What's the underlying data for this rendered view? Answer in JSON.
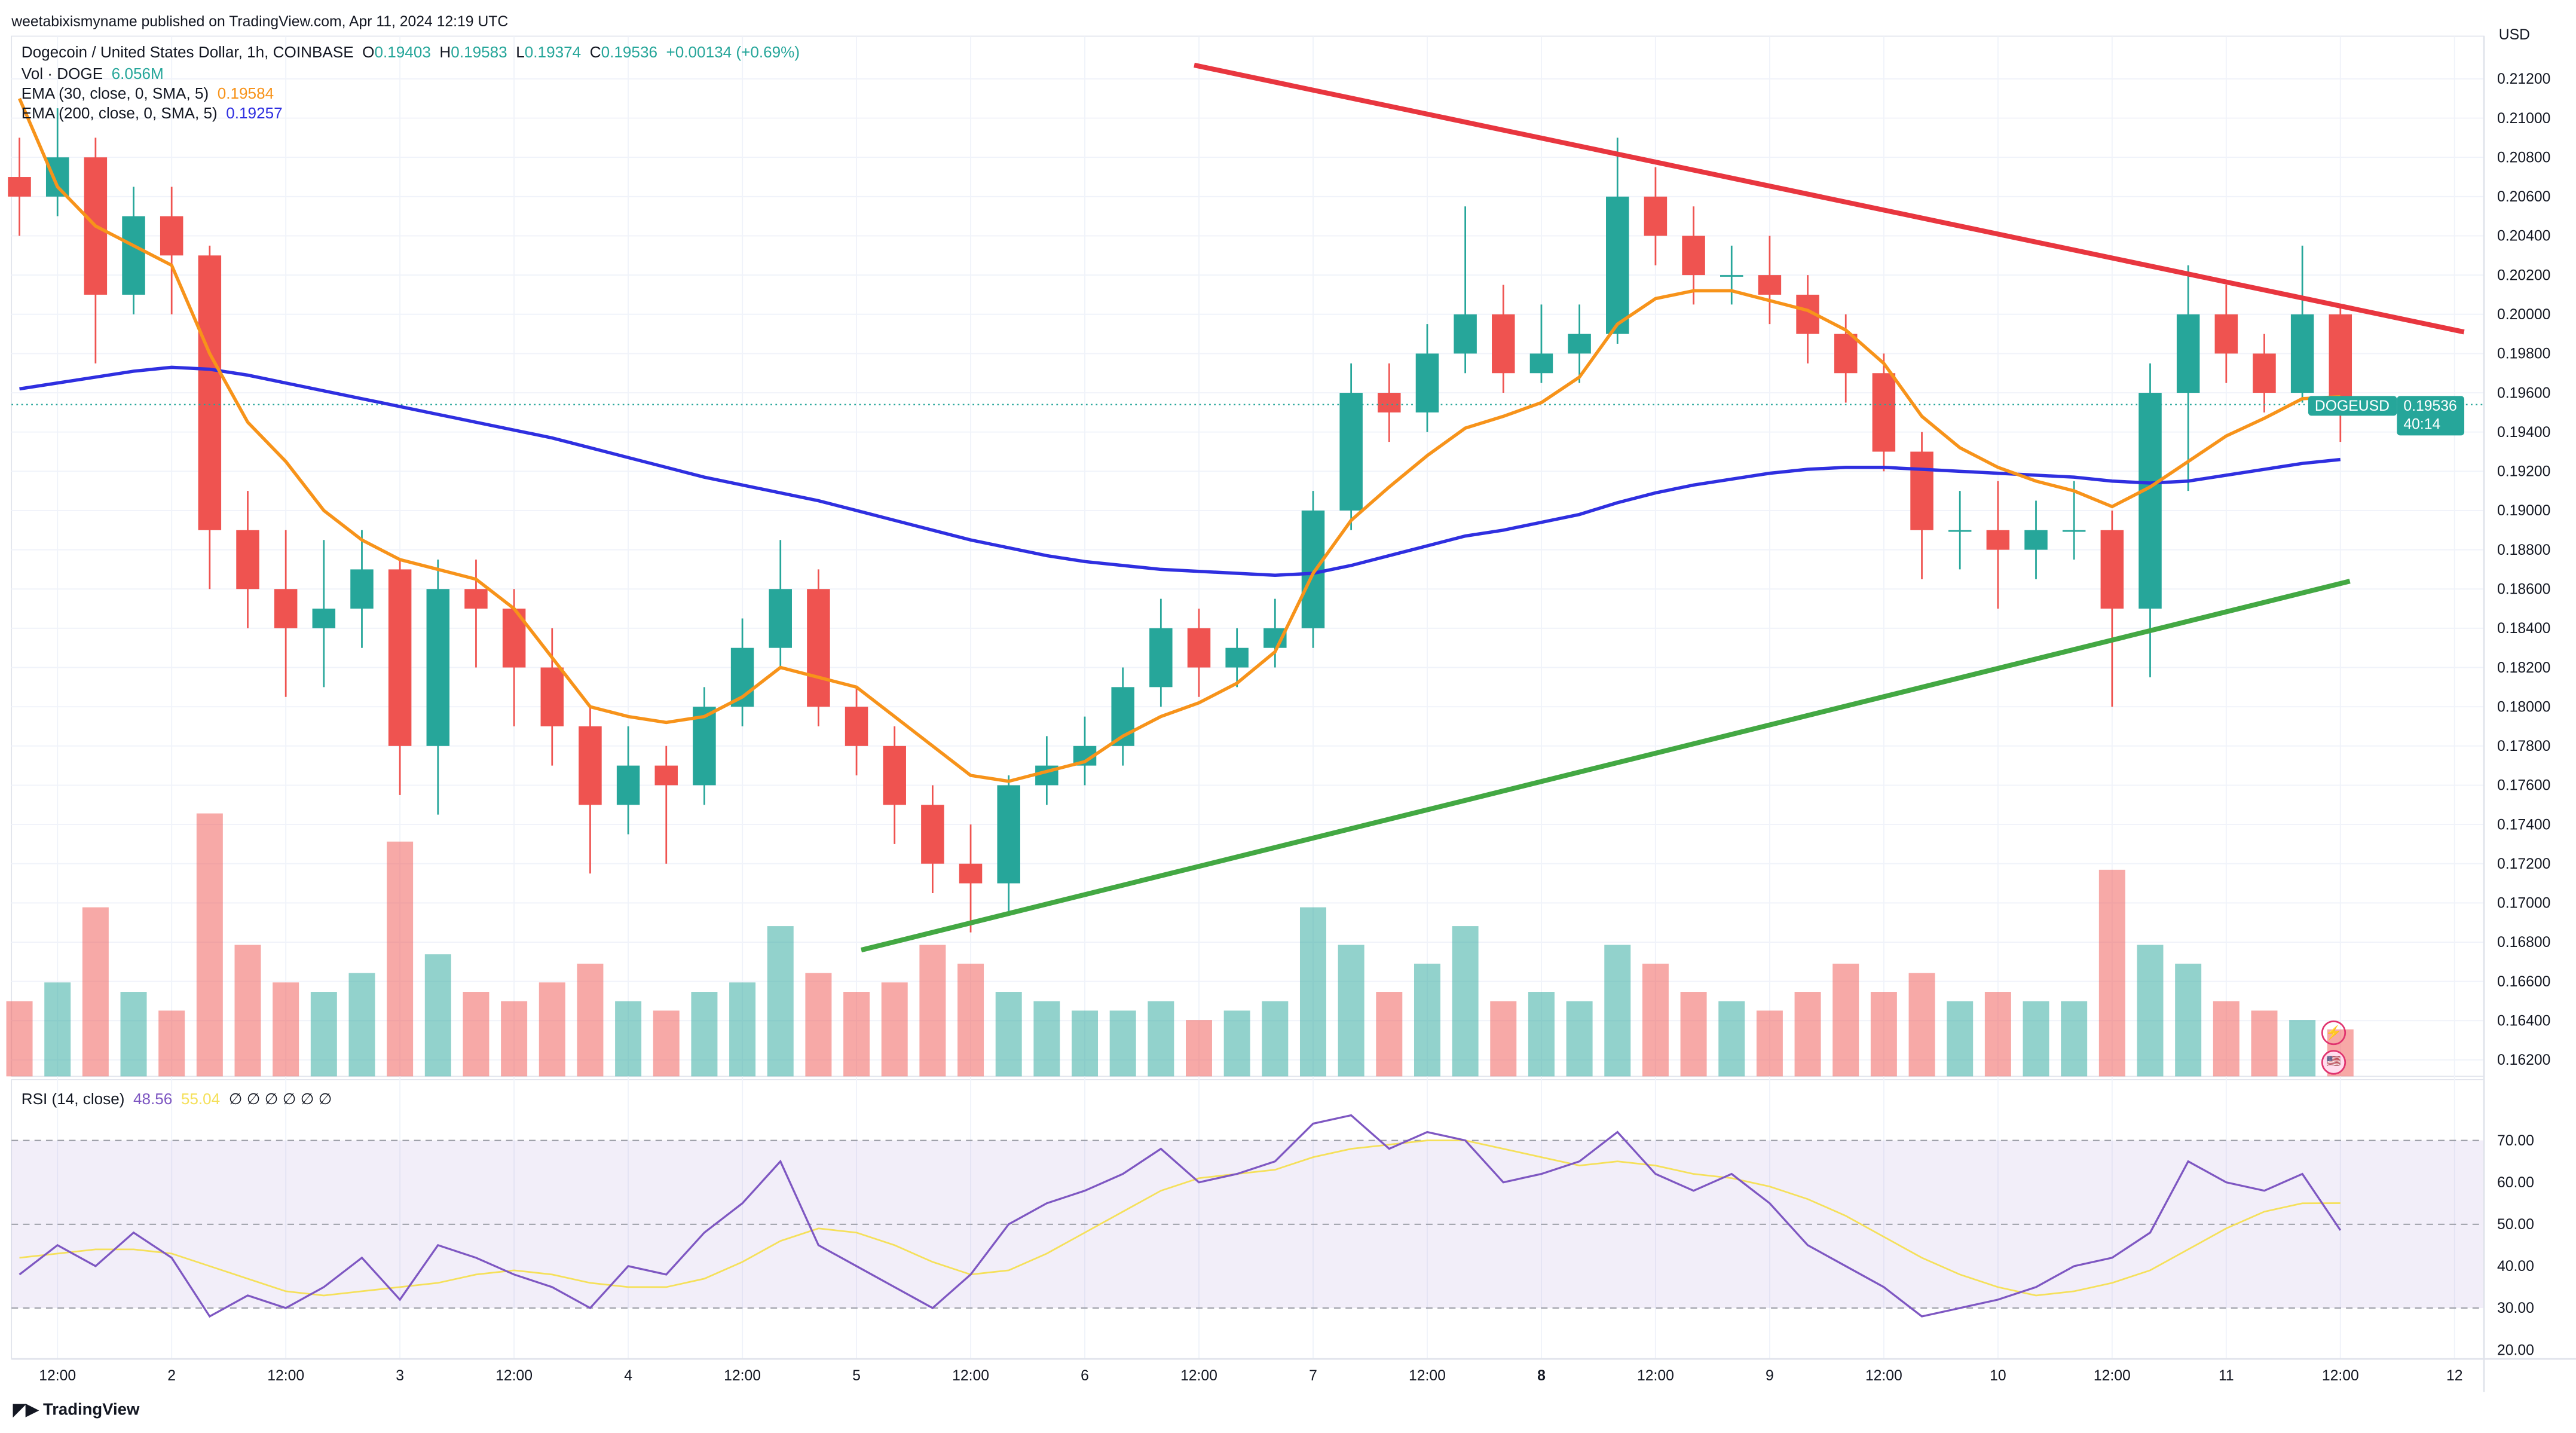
{
  "publish_line": "weetabixismyname published on TradingView.com, Apr 11, 2024 12:19 UTC",
  "legend": {
    "symbol": "Dogecoin / United States Dollar, 1h, COINBASE",
    "o_label": "O",
    "o": "0.19403",
    "h_label": "H",
    "h": "0.19583",
    "l_label": "L",
    "l": "0.19374",
    "c_label": "C",
    "c": "0.19536",
    "change": "+0.00134 (+0.69%)",
    "vol_label": "Vol · DOGE",
    "vol": "6.056M",
    "ema30_label": "EMA (30, close, 0, SMA, 5)",
    "ema30": "0.19584",
    "ema200_label": "EMA (200, close, 0, SMA, 5)",
    "ema200": "0.19257",
    "rsi_label": "RSI (14, close)",
    "rsi": "48.56",
    "rsi_ma": "55.04",
    "rsi_na": "∅ ∅ ∅ ∅ ∅ ∅"
  },
  "price_tag": {
    "symbol": "DOGEUSD",
    "price": "0.19536",
    "countdown": "40:14"
  },
  "currency": "USD",
  "footer_logo": "TradingView",
  "colors": {
    "up": "#26a69a",
    "down": "#ef5350",
    "ema30": "#f7931a",
    "ema200": "#2f2fe0",
    "resistance": "#e8363f",
    "support": "#43a843",
    "rsi": "#7e57c2",
    "rsi_ma": "#f5e05a"
  },
  "chart_data": {
    "type": "candlestick",
    "x_start": "2024-04-01T08:00Z",
    "interval": "4h",
    "price_ticks": [
      "0.21200",
      "0.21000",
      "0.20800",
      "0.20600",
      "0.20400",
      "0.20200",
      "0.20000",
      "0.19800",
      "0.19600",
      "0.19400",
      "0.19200",
      "0.19000",
      "0.18800",
      "0.18600",
      "0.18400",
      "0.18200",
      "0.18000",
      "0.17800",
      "0.17600",
      "0.17400",
      "0.17200",
      "0.17000",
      "0.16800",
      "0.16600",
      "0.16400",
      "0.16200"
    ],
    "ylim": [
      0.162,
      0.212
    ],
    "time_ticks": [
      "12:00",
      "2",
      "12:00",
      "3",
      "12:00",
      "4",
      "12:00",
      "5",
      "12:00",
      "6",
      "12:00",
      "7",
      "12:00",
      "8",
      "12:00",
      "9",
      "12:00",
      "10",
      "12:00",
      "11",
      "12:00",
      "12"
    ],
    "rsi_ticks": [
      "70.00",
      "60.00",
      "50.00",
      "40.00",
      "30.00",
      "20.00"
    ],
    "ohlc": [
      [
        0.207,
        0.209,
        0.204,
        0.206
      ],
      [
        0.206,
        0.2105,
        0.205,
        0.208
      ],
      [
        0.208,
        0.209,
        0.1975,
        0.201
      ],
      [
        0.201,
        0.2065,
        0.2,
        0.205
      ],
      [
        0.205,
        0.2065,
        0.2,
        0.203
      ],
      [
        0.203,
        0.2035,
        0.186,
        0.189
      ],
      [
        0.189,
        0.191,
        0.184,
        0.186
      ],
      [
        0.186,
        0.189,
        0.1805,
        0.184
      ],
      [
        0.184,
        0.1885,
        0.181,
        0.185
      ],
      [
        0.185,
        0.189,
        0.183,
        0.187
      ],
      [
        0.187,
        0.1875,
        0.1755,
        0.178
      ],
      [
        0.178,
        0.1875,
        0.1745,
        0.186
      ],
      [
        0.186,
        0.1875,
        0.182,
        0.185
      ],
      [
        0.185,
        0.186,
        0.179,
        0.182
      ],
      [
        0.182,
        0.184,
        0.177,
        0.179
      ],
      [
        0.179,
        0.18,
        0.1715,
        0.175
      ],
      [
        0.175,
        0.179,
        0.1735,
        0.177
      ],
      [
        0.177,
        0.178,
        0.172,
        0.176
      ],
      [
        0.176,
        0.181,
        0.175,
        0.18
      ],
      [
        0.18,
        0.1845,
        0.179,
        0.183
      ],
      [
        0.183,
        0.1885,
        0.182,
        0.186
      ],
      [
        0.186,
        0.187,
        0.179,
        0.18
      ],
      [
        0.18,
        0.181,
        0.1765,
        0.178
      ],
      [
        0.178,
        0.179,
        0.173,
        0.175
      ],
      [
        0.175,
        0.176,
        0.1705,
        0.172
      ],
      [
        0.172,
        0.174,
        0.1685,
        0.171
      ],
      [
        0.171,
        0.1765,
        0.1695,
        0.176
      ],
      [
        0.176,
        0.1785,
        0.175,
        0.177
      ],
      [
        0.177,
        0.1795,
        0.176,
        0.178
      ],
      [
        0.178,
        0.182,
        0.177,
        0.181
      ],
      [
        0.181,
        0.1855,
        0.18,
        0.184
      ],
      [
        0.184,
        0.185,
        0.1805,
        0.182
      ],
      [
        0.182,
        0.184,
        0.181,
        0.183
      ],
      [
        0.183,
        0.1855,
        0.182,
        0.184
      ],
      [
        0.184,
        0.191,
        0.183,
        0.19
      ],
      [
        0.19,
        0.1975,
        0.189,
        0.196
      ],
      [
        0.196,
        0.1975,
        0.1935,
        0.195
      ],
      [
        0.195,
        0.1995,
        0.194,
        0.198
      ],
      [
        0.198,
        0.2055,
        0.197,
        0.2
      ],
      [
        0.2,
        0.2015,
        0.196,
        0.197
      ],
      [
        0.197,
        0.2005,
        0.1965,
        0.198
      ],
      [
        0.198,
        0.2005,
        0.1965,
        0.199
      ],
      [
        0.199,
        0.209,
        0.1985,
        0.206
      ],
      [
        0.206,
        0.2075,
        0.2025,
        0.204
      ],
      [
        0.204,
        0.2055,
        0.2005,
        0.202
      ],
      [
        0.202,
        0.2035,
        0.2005,
        0.202
      ],
      [
        0.202,
        0.204,
        0.1995,
        0.201
      ],
      [
        0.201,
        0.202,
        0.1975,
        0.199
      ],
      [
        0.199,
        0.2,
        0.1955,
        0.197
      ],
      [
        0.197,
        0.198,
        0.192,
        0.193
      ],
      [
        0.193,
        0.194,
        0.1865,
        0.189
      ],
      [
        0.189,
        0.191,
        0.187,
        0.189
      ],
      [
        0.189,
        0.1915,
        0.185,
        0.188
      ],
      [
        0.188,
        0.1905,
        0.1865,
        0.189
      ],
      [
        0.189,
        0.1915,
        0.1875,
        0.189
      ],
      [
        0.189,
        0.19,
        0.18,
        0.185
      ],
      [
        0.185,
        0.1975,
        0.1815,
        0.196
      ],
      [
        0.196,
        0.2025,
        0.191,
        0.2
      ],
      [
        0.2,
        0.2015,
        0.1965,
        0.198
      ],
      [
        0.198,
        0.199,
        0.195,
        0.196
      ],
      [
        0.196,
        0.2035,
        0.1955,
        0.2
      ],
      [
        0.2,
        0.2005,
        0.1935,
        0.1954
      ]
    ],
    "volume_m": [
      8,
      10,
      18,
      9,
      7,
      28,
      14,
      10,
      9,
      11,
      25,
      13,
      9,
      8,
      10,
      12,
      8,
      7,
      9,
      10,
      16,
      11,
      9,
      10,
      14,
      12,
      9,
      8,
      7,
      7,
      8,
      6,
      7,
      8,
      18,
      14,
      9,
      12,
      16,
      8,
      9,
      8,
      14,
      12,
      9,
      8,
      7,
      9,
      12,
      9,
      11,
      8,
      9,
      8,
      8,
      22,
      14,
      12,
      8,
      7,
      6,
      5
    ],
    "ema30": [
      0.211,
      0.2065,
      0.2045,
      0.2035,
      0.2025,
      0.198,
      0.1945,
      0.1925,
      0.19,
      0.1885,
      0.1875,
      0.187,
      0.1865,
      0.185,
      0.1825,
      0.18,
      0.1795,
      0.1792,
      0.1795,
      0.1805,
      0.182,
      0.1815,
      0.181,
      0.1795,
      0.178,
      0.1765,
      0.1762,
      0.1767,
      0.1772,
      0.1785,
      0.1795,
      0.1802,
      0.1812,
      0.1828,
      0.1868,
      0.1895,
      0.1912,
      0.1928,
      0.1942,
      0.1948,
      0.1955,
      0.1968,
      0.1995,
      0.2008,
      0.2012,
      0.2012,
      0.2007,
      0.2002,
      0.1992,
      0.1975,
      0.1948,
      0.1932,
      0.1922,
      0.1915,
      0.191,
      0.1902,
      0.1912,
      0.1925,
      0.1938,
      0.1947,
      0.1957,
      0.1958
    ],
    "ema200": [
      0.1962,
      0.1965,
      0.1968,
      0.1971,
      0.1973,
      0.1972,
      0.1969,
      0.1965,
      0.1961,
      0.1957,
      0.1953,
      0.1949,
      0.1945,
      0.1941,
      0.1937,
      0.1932,
      0.1927,
      0.1922,
      0.1917,
      0.1913,
      0.1909,
      0.1905,
      0.19,
      0.1895,
      0.189,
      0.1885,
      0.1881,
      0.1877,
      0.1874,
      0.1872,
      0.187,
      0.1869,
      0.1868,
      0.1867,
      0.1868,
      0.1872,
      0.1877,
      0.1882,
      0.1887,
      0.189,
      0.1894,
      0.1898,
      0.1904,
      0.1909,
      0.1913,
      0.1916,
      0.1919,
      0.1921,
      0.1922,
      0.1922,
      0.1921,
      0.192,
      0.1919,
      0.1918,
      0.1917,
      0.1915,
      0.1914,
      0.1915,
      0.1918,
      0.1921,
      0.1924,
      0.1926
    ],
    "rsi": [
      38,
      45,
      40,
      48,
      42,
      28,
      33,
      30,
      35,
      42,
      32,
      45,
      42,
      38,
      35,
      30,
      40,
      38,
      48,
      55,
      65,
      45,
      40,
      35,
      30,
      38,
      50,
      55,
      58,
      62,
      68,
      60,
      62,
      65,
      74,
      76,
      68,
      72,
      70,
      60,
      62,
      65,
      72,
      62,
      58,
      62,
      55,
      45,
      40,
      35,
      28,
      30,
      32,
      35,
      40,
      42,
      48,
      65,
      60,
      58,
      62,
      48.56
    ],
    "rsi_ma": [
      42,
      43,
      44,
      44,
      43,
      40,
      37,
      34,
      33,
      34,
      35,
      36,
      38,
      39,
      38,
      36,
      35,
      35,
      37,
      41,
      46,
      49,
      48,
      45,
      41,
      38,
      39,
      43,
      48,
      53,
      58,
      61,
      62,
      63,
      66,
      68,
      69,
      70,
      70,
      68,
      66,
      64,
      65,
      64,
      62,
      61,
      59,
      56,
      52,
      47,
      42,
      38,
      35,
      33,
      34,
      36,
      39,
      44,
      49,
      53,
      55,
      55.04
    ],
    "rsi_bands": [
      70,
      50,
      30
    ],
    "rsi_ylim": [
      20,
      75
    ],
    "trendlines": [
      {
        "color": "resistance",
        "from": [
          "2024-04-06T11:30Z",
          0.2127
        ],
        "to": [
          "2024-04-12T01:00Z",
          0.1991
        ]
      },
      {
        "color": "support",
        "from": [
          "2024-04-05T00:30Z",
          0.1676
        ],
        "to": [
          "2024-04-11T13:00Z",
          0.1864
        ]
      }
    ]
  }
}
